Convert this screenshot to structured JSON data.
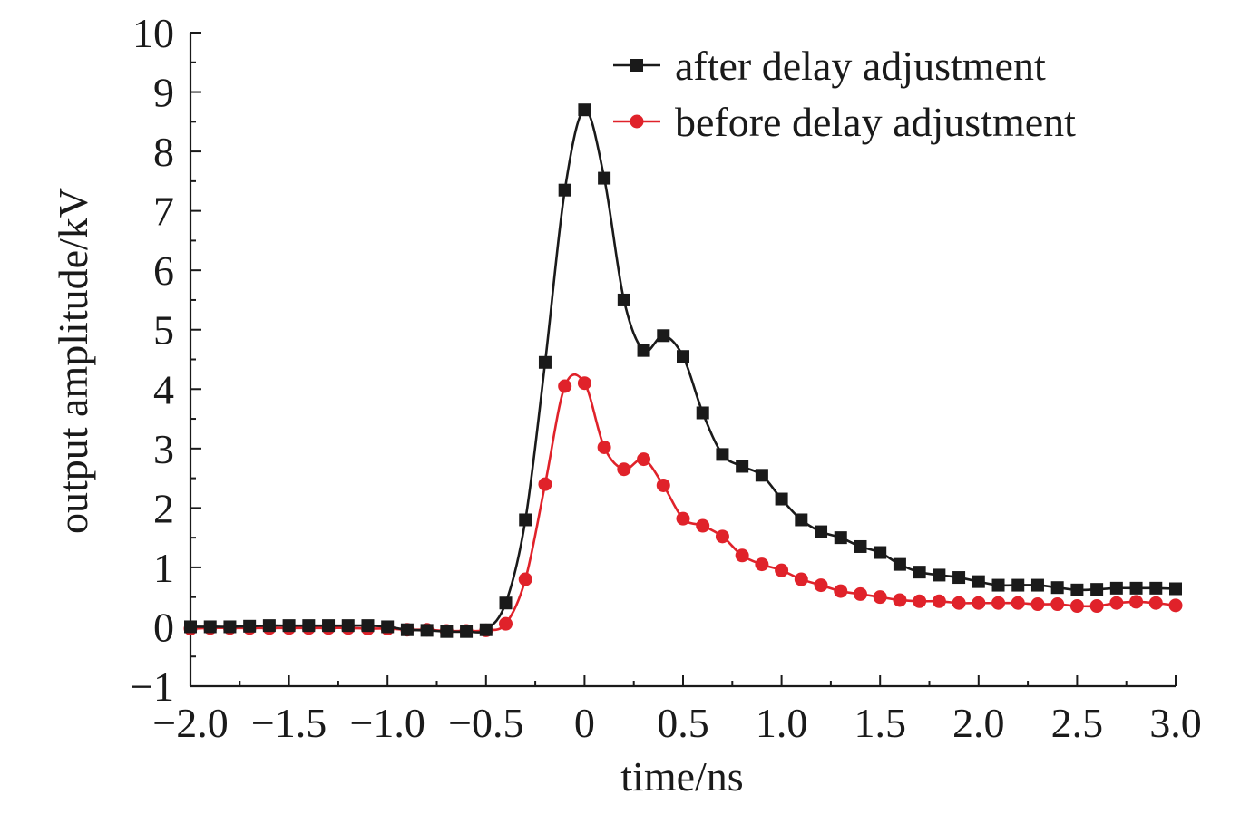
{
  "chart_data": {
    "type": "line",
    "xlabel": "time/ns",
    "ylabel": "output amplitude/kV",
    "xlim": [
      -2.0,
      3.0
    ],
    "ylim": [
      -1,
      10
    ],
    "x_ticks": [
      -2.0,
      -1.5,
      -1.0,
      -0.5,
      0,
      0.5,
      1.0,
      1.5,
      2.0,
      2.5,
      3.0
    ],
    "x_tick_labels": [
      "−2.0",
      "−1.5",
      "−1.0",
      "−0.5",
      "0",
      "0.5",
      "1.0",
      "1.5",
      "2.0",
      "2.5",
      "3.0"
    ],
    "y_ticks": [
      -1,
      0,
      1,
      2,
      3,
      4,
      5,
      6,
      7,
      8,
      9,
      10
    ],
    "y_tick_labels": [
      "−1",
      "0",
      "1",
      "2",
      "3",
      "4",
      "5",
      "6",
      "7",
      "8",
      "9",
      "10"
    ],
    "grid": false,
    "legend_position": "top-right",
    "series": [
      {
        "name": "after delay adjustment",
        "color": "#1a1a1a",
        "marker": "square",
        "x": [
          -2.0,
          -1.9,
          -1.8,
          -1.7,
          -1.6,
          -1.5,
          -1.4,
          -1.3,
          -1.2,
          -1.1,
          -1.0,
          -0.9,
          -0.8,
          -0.7,
          -0.6,
          -0.5,
          -0.4,
          -0.3,
          -0.2,
          -0.1,
          0.0,
          0.1,
          0.2,
          0.3,
          0.4,
          0.5,
          0.6,
          0.7,
          0.8,
          0.9,
          1.0,
          1.1,
          1.2,
          1.3,
          1.4,
          1.5,
          1.6,
          1.7,
          1.8,
          1.9,
          2.0,
          2.1,
          2.2,
          2.3,
          2.4,
          2.5,
          2.6,
          2.7,
          2.8,
          2.9,
          3.0
        ],
        "y": [
          0.0,
          0.0,
          0.0,
          0.01,
          0.02,
          0.02,
          0.02,
          0.02,
          0.02,
          0.02,
          0.0,
          -0.05,
          -0.06,
          -0.08,
          -0.08,
          -0.05,
          0.4,
          1.8,
          4.45,
          7.35,
          8.7,
          7.55,
          5.5,
          4.65,
          4.9,
          4.55,
          3.6,
          2.9,
          2.7,
          2.55,
          2.15,
          1.8,
          1.6,
          1.5,
          1.35,
          1.25,
          1.05,
          0.92,
          0.87,
          0.83,
          0.76,
          0.7,
          0.7,
          0.7,
          0.66,
          0.62,
          0.63,
          0.65,
          0.65,
          0.65,
          0.64
        ]
      },
      {
        "name": "before delay adjustment",
        "color": "#e0222a",
        "marker": "circle",
        "x": [
          -2.0,
          -1.9,
          -1.8,
          -1.7,
          -1.6,
          -1.5,
          -1.4,
          -1.3,
          -1.2,
          -1.1,
          -1.0,
          -0.9,
          -0.8,
          -0.7,
          -0.6,
          -0.5,
          -0.4,
          -0.3,
          -0.2,
          -0.1,
          0.0,
          0.1,
          0.2,
          0.3,
          0.4,
          0.5,
          0.6,
          0.7,
          0.8,
          0.9,
          1.0,
          1.1,
          1.2,
          1.3,
          1.4,
          1.5,
          1.6,
          1.7,
          1.8,
          1.9,
          2.0,
          2.1,
          2.2,
          2.3,
          2.4,
          2.5,
          2.6,
          2.7,
          2.8,
          2.9,
          3.0
        ],
        "y": [
          -0.03,
          -0.02,
          -0.02,
          -0.02,
          -0.02,
          -0.02,
          -0.02,
          -0.02,
          -0.02,
          -0.03,
          -0.03,
          -0.05,
          -0.05,
          -0.07,
          -0.07,
          -0.06,
          0.05,
          0.8,
          2.4,
          4.05,
          4.1,
          3.02,
          2.65,
          2.82,
          2.38,
          1.82,
          1.7,
          1.52,
          1.2,
          1.05,
          0.95,
          0.8,
          0.7,
          0.6,
          0.55,
          0.5,
          0.45,
          0.43,
          0.43,
          0.4,
          0.4,
          0.4,
          0.4,
          0.38,
          0.38,
          0.35,
          0.35,
          0.4,
          0.42,
          0.4,
          0.36
        ]
      }
    ]
  }
}
